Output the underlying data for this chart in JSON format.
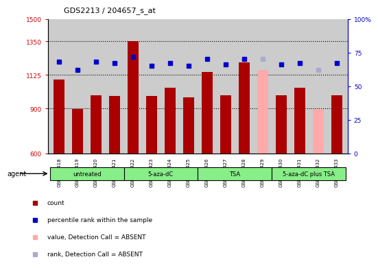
{
  "title": "GDS2213 / 204657_s_at",
  "samples": [
    "GSM118418",
    "GSM118419",
    "GSM118420",
    "GSM118421",
    "GSM118422",
    "GSM118423",
    "GSM118424",
    "GSM118425",
    "GSM118426",
    "GSM118427",
    "GSM118428",
    "GSM118429",
    "GSM118430",
    "GSM118431",
    "GSM118432",
    "GSM118433"
  ],
  "bar_values": [
    1095,
    895,
    990,
    985,
    1350,
    985,
    1040,
    975,
    1145,
    990,
    1210,
    1160,
    990,
    1040,
    895,
    990
  ],
  "bar_absent": [
    false,
    false,
    false,
    false,
    false,
    false,
    false,
    false,
    false,
    false,
    false,
    true,
    false,
    false,
    true,
    false
  ],
  "rank_values": [
    68,
    62,
    68,
    67,
    72,
    65,
    67,
    65,
    70,
    66,
    70,
    70,
    66,
    67,
    62,
    67
  ],
  "rank_absent": [
    false,
    false,
    false,
    false,
    false,
    false,
    false,
    false,
    false,
    false,
    false,
    true,
    false,
    false,
    true,
    false
  ],
  "ylim_left": [
    600,
    1500
  ],
  "ylim_right": [
    0,
    100
  ],
  "yticks_left": [
    600,
    900,
    1125,
    1350,
    1500
  ],
  "yticks_right": [
    0,
    25,
    50,
    75,
    100
  ],
  "ytick_labels_left": [
    "600",
    "900",
    "1125",
    "1350",
    "1500"
  ],
  "ytick_labels_right": [
    "0",
    "25",
    "50",
    "75",
    "100%"
  ],
  "gridlines": [
    900,
    1125,
    1350
  ],
  "bar_color_normal": "#aa0000",
  "bar_color_absent": "#ffaaaa",
  "rank_color_normal": "#0000cc",
  "rank_color_absent": "#aaaacc",
  "bg_color": "#cccccc",
  "agent_groups": [
    {
      "label": "untreated",
      "start": 0,
      "end": 3
    },
    {
      "label": "5-aza-dC",
      "start": 4,
      "end": 7
    },
    {
      "label": "TSA",
      "start": 8,
      "end": 11
    },
    {
      "label": "5-aza-dC plus TSA",
      "start": 12,
      "end": 15
    }
  ],
  "agent_bg_color": "#88ee88",
  "agent_label": "agent",
  "legend_items": [
    {
      "label": "count",
      "color": "#aa0000"
    },
    {
      "label": "percentile rank within the sample",
      "color": "#0000cc"
    },
    {
      "label": "value, Detection Call = ABSENT",
      "color": "#ffaaaa"
    },
    {
      "label": "rank, Detection Call = ABSENT",
      "color": "#aaaacc"
    }
  ]
}
